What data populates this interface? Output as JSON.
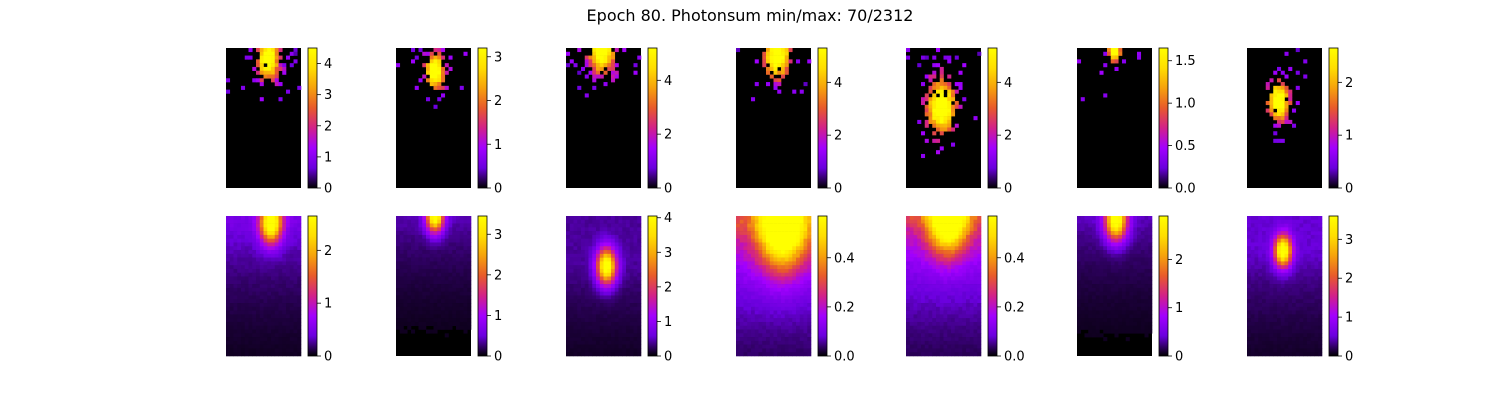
{
  "title": "Epoch 80. Photonsum min/max: 70/2312",
  "colormap": {
    "name": "gnuplot",
    "stops": [
      "#000000",
      "#6a00dd",
      "#a200ff",
      "#d2208a",
      "#e85a2b",
      "#f6a10c",
      "#ffde00",
      "#ffff00"
    ]
  },
  "chart_data": [
    {
      "type": "heatmap",
      "row": "observed",
      "column": 1,
      "colorbar": {
        "ylim": [
          0,
          4.5
        ],
        "ticks": [
          0,
          1,
          2,
          3,
          4
        ],
        "tick_labels": [
          "0",
          "1",
          "2",
          "3",
          "4"
        ]
      },
      "hotspot": {
        "x": 0.56,
        "y": 0.08,
        "peak": 4.5,
        "spread": 0.1
      },
      "noise": 0.35
    },
    {
      "type": "heatmap",
      "row": "observed",
      "column": 2,
      "colorbar": {
        "ylim": [
          0,
          3.2
        ],
        "ticks": [
          0,
          1,
          2,
          3
        ],
        "tick_labels": [
          "0",
          "1",
          "2",
          "3"
        ]
      },
      "hotspot": {
        "x": 0.52,
        "y": 0.17,
        "peak": 3.2,
        "spread": 0.09
      },
      "noise": 0.2
    },
    {
      "type": "heatmap",
      "row": "observed",
      "column": 3,
      "colorbar": {
        "ylim": [
          0,
          5.2
        ],
        "ticks": [
          0,
          2,
          4
        ],
        "tick_labels": [
          "0",
          "2",
          "4"
        ]
      },
      "hotspot": {
        "x": 0.48,
        "y": 0.01,
        "peak": 5.2,
        "spread": 0.12
      },
      "noise": 0.35
    },
    {
      "type": "heatmap",
      "row": "observed",
      "column": 4,
      "colorbar": {
        "ylim": [
          0,
          5.3
        ],
        "ticks": [
          0,
          2,
          4
        ],
        "tick_labels": [
          "0",
          "2",
          "4"
        ]
      },
      "hotspot": {
        "x": 0.55,
        "y": 0.05,
        "peak": 5.3,
        "spread": 0.12
      },
      "noise": 0.32
    },
    {
      "type": "heatmap",
      "row": "observed",
      "column": 5,
      "colorbar": {
        "ylim": [
          0,
          5.3
        ],
        "ticks": [
          0,
          2,
          4
        ],
        "tick_labels": [
          "0",
          "2",
          "4"
        ]
      },
      "hotspot": {
        "x": 0.47,
        "y": 0.42,
        "peak": 5.3,
        "spread": 0.14
      },
      "noise": 0.32
    },
    {
      "type": "heatmap",
      "row": "observed",
      "column": 6,
      "colorbar": {
        "ylim": [
          0,
          1.65
        ],
        "ticks": [
          0,
          0.5,
          1.0,
          1.5
        ],
        "tick_labels": [
          "0.0",
          "0.5",
          "1.0",
          "1.5"
        ]
      },
      "hotspot": {
        "x": 0.5,
        "y": 0.02,
        "peak": 1.6,
        "spread": 0.06
      },
      "noise": 0.25
    },
    {
      "type": "heatmap",
      "row": "observed",
      "column": 7,
      "colorbar": {
        "ylim": [
          0,
          2.65
        ],
        "ticks": [
          0,
          1,
          2
        ],
        "tick_labels": [
          "0",
          "1",
          "2"
        ]
      },
      "hotspot": {
        "x": 0.42,
        "y": 0.38,
        "peak": 2.6,
        "spread": 0.1
      },
      "noise": 0.22
    },
    {
      "type": "heatmap",
      "row": "predicted",
      "column": 1,
      "colorbar": {
        "ylim": [
          0,
          2.65
        ],
        "ticks": [
          0,
          1,
          2
        ],
        "tick_labels": [
          "0",
          "1",
          "2"
        ]
      },
      "hotspot": {
        "x": 0.6,
        "y": 0.05,
        "peak": 2.65,
        "spread": 0.1
      },
      "haze": 0.18
    },
    {
      "type": "heatmap",
      "row": "predicted",
      "column": 2,
      "colorbar": {
        "ylim": [
          0,
          3.45
        ],
        "ticks": [
          0,
          1,
          2,
          3
        ],
        "tick_labels": [
          "0",
          "1",
          "2",
          "3"
        ]
      },
      "hotspot": {
        "x": 0.52,
        "y": 0.0,
        "peak": 3.45,
        "spread": 0.08
      },
      "haze": 0.12
    },
    {
      "type": "heatmap",
      "row": "predicted",
      "column": 3,
      "colorbar": {
        "ylim": [
          0,
          4.05
        ],
        "ticks": [
          0,
          1,
          2,
          3,
          4
        ],
        "tick_labels": [
          "0",
          "1",
          "2",
          "3",
          "4"
        ]
      },
      "hotspot": {
        "x": 0.54,
        "y": 0.36,
        "peak": 4.05,
        "spread": 0.09
      },
      "haze": 0.1
    },
    {
      "type": "heatmap",
      "row": "predicted",
      "column": 4,
      "colorbar": {
        "ylim": [
          0,
          0.57
        ],
        "ticks": [
          0,
          0.2,
          0.4
        ],
        "tick_labels": [
          "0.0",
          "0.2",
          "0.4"
        ]
      },
      "hotspot": {
        "x": 0.62,
        "y": 0.06,
        "peak": 0.57,
        "spread": 0.22
      },
      "haze": 0.5
    },
    {
      "type": "heatmap",
      "row": "predicted",
      "column": 5,
      "colorbar": {
        "ylim": [
          0,
          0.57
        ],
        "ticks": [
          0,
          0.2,
          0.4
        ],
        "tick_labels": [
          "0.0",
          "0.2",
          "0.4"
        ]
      },
      "hotspot": {
        "x": 0.56,
        "y": 0.0,
        "peak": 0.57,
        "spread": 0.18
      },
      "haze": 0.5
    },
    {
      "type": "heatmap",
      "row": "predicted",
      "column": 6,
      "colorbar": {
        "ylim": [
          0,
          2.9
        ],
        "ticks": [
          0,
          1,
          2
        ],
        "tick_labels": [
          "0",
          "1",
          "2"
        ]
      },
      "hotspot": {
        "x": 0.52,
        "y": 0.03,
        "peak": 2.9,
        "spread": 0.1
      },
      "haze": 0.12
    },
    {
      "type": "heatmap",
      "row": "predicted",
      "column": 7,
      "colorbar": {
        "ylim": [
          0,
          3.6
        ],
        "ticks": [
          0,
          1,
          2,
          3
        ],
        "tick_labels": [
          "0",
          "1",
          "2",
          "3"
        ]
      },
      "hotspot": {
        "x": 0.48,
        "y": 0.25,
        "peak": 3.6,
        "spread": 0.08
      },
      "haze": 0.14
    }
  ]
}
